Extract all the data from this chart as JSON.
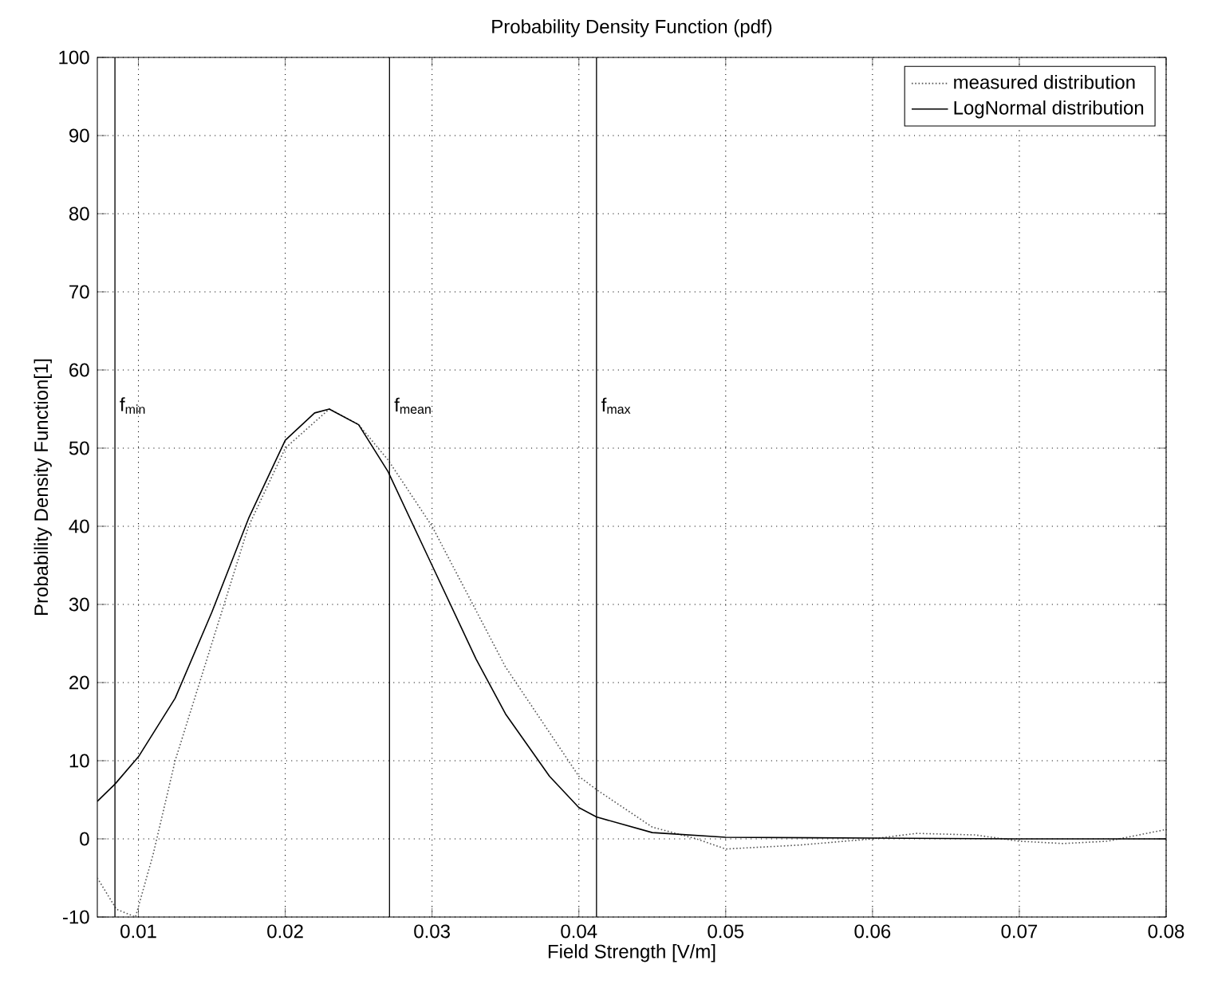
{
  "chart_data": {
    "type": "line",
    "title": "Probability Density Function (pdf)",
    "xlabel": "Field Strength [V/m]",
    "ylabel": "Probability Density Function[1]",
    "xlim": [
      0.0072,
      0.08
    ],
    "ylim": [
      -10,
      100
    ],
    "xticks": [
      0.01,
      0.02,
      0.03,
      0.04,
      0.05,
      0.06,
      0.07,
      0.08
    ],
    "yticks": [
      -10,
      0,
      10,
      20,
      30,
      40,
      50,
      60,
      70,
      80,
      90,
      100
    ],
    "grid": true,
    "legend": "top right",
    "marker": "none",
    "series": [
      {
        "name": "measured distribution",
        "color": "#555555",
        "line_style": "dotted",
        "x": [
          0.0072,
          0.0085,
          0.0098,
          0.011,
          0.0125,
          0.015,
          0.0175,
          0.02,
          0.023,
          0.025,
          0.027,
          0.03,
          0.035,
          0.04,
          0.0412,
          0.045,
          0.048,
          0.05,
          0.055,
          0.06,
          0.063,
          0.067,
          0.07,
          0.073,
          0.076,
          0.08
        ],
        "values": [
          -5,
          -9,
          -10,
          -2,
          10,
          25,
          40,
          50,
          55,
          53,
          48.5,
          40,
          22,
          8,
          6.3,
          1.5,
          0,
          -1.3,
          -0.8,
          0,
          0.7,
          0.5,
          -0.3,
          -0.6,
          -0.3,
          1.2
        ]
      },
      {
        "name": "LogNormal distribution",
        "color": "#000000",
        "line_style": "solid",
        "x": [
          0.0072,
          0.0084,
          0.01,
          0.0125,
          0.015,
          0.0175,
          0.02,
          0.022,
          0.023,
          0.025,
          0.027,
          0.03,
          0.033,
          0.035,
          0.038,
          0.04,
          0.0412,
          0.045,
          0.05,
          0.06,
          0.07,
          0.08
        ],
        "values": [
          4.8,
          7,
          10.5,
          18,
          29,
          41,
          51,
          54.5,
          55,
          53,
          47,
          35,
          23,
          16,
          8,
          4,
          2.8,
          0.8,
          0.2,
          0.1,
          0,
          0
        ]
      }
    ],
    "ref_lines": [
      {
        "axis": "x",
        "value": 0.0084,
        "label": "f$_{min}$"
      },
      {
        "axis": "x",
        "value": 0.0271,
        "label": "f$_{mean}$"
      },
      {
        "axis": "x",
        "value": 0.0412,
        "label": "f$_{max}$"
      }
    ]
  }
}
